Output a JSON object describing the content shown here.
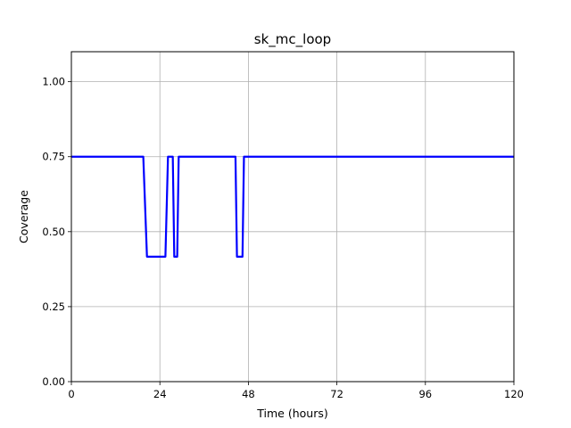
{
  "chart_data": {
    "type": "line",
    "title": "sk_mc_loop",
    "xlabel": "Time (hours)",
    "ylabel": "Coverage",
    "xlim": [
      0,
      120
    ],
    "ylim": [
      0,
      1.1
    ],
    "xticks": [
      0,
      24,
      48,
      72,
      96,
      120
    ],
    "xtick_labels": [
      "0",
      "24",
      "48",
      "72",
      "96",
      "120"
    ],
    "yticks": [
      0,
      0.25,
      0.5,
      0.75,
      1.0
    ],
    "ytick_labels": [
      "0.00",
      "0.25",
      "0.50",
      "0.75",
      "1.00"
    ],
    "grid": true,
    "series": [
      {
        "color": "#0000ff",
        "x": [
          0,
          19.5,
          20.5,
          25.5,
          26.2,
          27.5,
          27.9,
          28.7,
          29.1,
          44.5,
          44.9,
          46.4,
          46.8,
          120
        ],
        "y": [
          0.75,
          0.75,
          0.4167,
          0.4167,
          0.75,
          0.75,
          0.4167,
          0.4167,
          0.75,
          0.75,
          0.4167,
          0.4167,
          0.75,
          0.75
        ]
      }
    ]
  }
}
